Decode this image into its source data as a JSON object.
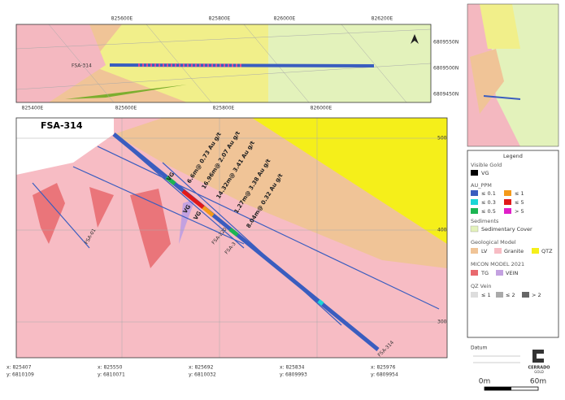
{
  "plan_view": {
    "label": "FSA-314",
    "top_ticks": [
      "825600E",
      "825800E",
      "826000E",
      "826200E"
    ],
    "right_ticks": [
      "6809550N",
      "6809500N",
      "6809450N"
    ],
    "bottom_ticks": [
      "825400E",
      "825600E",
      "825800E",
      "826000E"
    ]
  },
  "section": {
    "hole": "FSA-314",
    "intercepts": [
      "6.6m@ 0.73 Au g/t",
      "16.96m@ 2.07 Au g/t",
      "14.32m@ 3.41 Au g/t",
      "1.27m@ 3.38 Au g/t",
      "8.04m@ 0.32 Au g/t"
    ],
    "vg": [
      "VG",
      "VG",
      "VG"
    ],
    "holes": [
      "FSA-01",
      "FSA-220",
      "FSA-3"
    ],
    "end_label": "FSA-314",
    "elevations": [
      "500",
      "400",
      "300"
    ],
    "coords": [
      {
        "x": "x: 825407",
        "y": "y: 6810109"
      },
      {
        "x": "x: 825550",
        "y": "y: 6810071"
      },
      {
        "x": "x: 825692",
        "y": "y: 6810032"
      },
      {
        "x": "x: 825834",
        "y": "y: 6809993"
      },
      {
        "x": "x: 825976",
        "y": "y: 6809954"
      }
    ]
  },
  "legend": {
    "title": "Legend",
    "visible_gold": {
      "heading": "Visible Gold",
      "item": "VG"
    },
    "au_ppm": {
      "heading": "AU_PPM",
      "items": [
        "≤ 0.1",
        "≤ 1",
        "≤ 0.3",
        "≤ 5",
        "≤ 0.5",
        "> 5"
      ]
    },
    "sediments": {
      "heading": "Sediments",
      "item": "Sedimentary Cover"
    },
    "geological_model": {
      "heading": "Geological Model",
      "items": [
        "LV",
        "Granite",
        "QTZ"
      ]
    },
    "micon_model": {
      "heading": "MICON MODEL 2021",
      "items": [
        "TG",
        "VEIN"
      ]
    },
    "qz_vein": {
      "heading": "QZ Vein",
      "items": [
        "≤ 1",
        "≤ 2",
        "> 2"
      ]
    }
  },
  "footer": {
    "datum": "Datum",
    "logo": [
      "CERRADO",
      "GOLD"
    ],
    "scale": [
      "0m",
      "60m"
    ]
  }
}
